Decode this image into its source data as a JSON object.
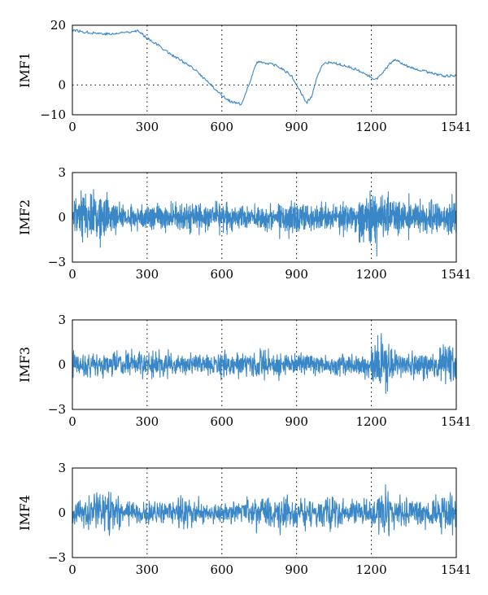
{
  "chart_data": [
    {
      "type": "line",
      "ylabel": "IMF1",
      "xlim": [
        0,
        1541
      ],
      "ylim": [
        -10,
        20
      ],
      "x_ticks": [
        0,
        300,
        600,
        900,
        1200,
        1541
      ],
      "y_ticks": [
        -10,
        0,
        20
      ],
      "y_tick_labels": [
        "−10",
        "0",
        "20"
      ],
      "grid": "vertical dotted at 300, 600, 900, 1200",
      "zero_line": true,
      "series": [
        {
          "color": "#3a87c8",
          "x": [
            0,
            40,
            80,
            120,
            160,
            200,
            240,
            260,
            300,
            350,
            400,
            450,
            500,
            550,
            600,
            640,
            680,
            700,
            720,
            740,
            760,
            780,
            800,
            840,
            880,
            900,
            920,
            940,
            960,
            980,
            1000,
            1020,
            1060,
            1100,
            1140,
            1180,
            1200,
            1220,
            1240,
            1260,
            1280,
            1300,
            1320,
            1340,
            1380,
            1420,
            1460,
            1500,
            1541
          ],
          "values": [
            18.5,
            17.8,
            17.5,
            17.2,
            17.0,
            17.5,
            18.0,
            18.2,
            15.8,
            13.0,
            10.0,
            7.5,
            4.5,
            0.5,
            -3.5,
            -5.8,
            -6.5,
            -2.0,
            3.0,
            7.5,
            7.8,
            7.2,
            7.0,
            5.5,
            3.0,
            0.0,
            -3.0,
            -6.0,
            -4.0,
            2.0,
            6.0,
            7.5,
            7.0,
            6.5,
            5.0,
            3.5,
            2.5,
            2.0,
            3.5,
            5.5,
            7.5,
            8.5,
            7.5,
            6.5,
            5.0,
            4.5,
            3.5,
            3.0,
            3.2
          ]
        }
      ]
    },
    {
      "type": "line",
      "ylabel": "IMF2",
      "xlim": [
        0,
        1541
      ],
      "ylim": [
        -3,
        3
      ],
      "x_ticks": [
        0,
        300,
        600,
        900,
        1200,
        1541
      ],
      "y_ticks": [
        -3,
        0,
        3
      ],
      "y_tick_labels": [
        "−3",
        "0",
        "3"
      ],
      "grid": "vertical dotted at 300, 600, 900, 1200",
      "zero_line": false,
      "series": [
        {
          "color": "#3a87c8",
          "signal": "noise",
          "count": 1541,
          "amplitude_envelope": {
            "x": [
              0,
              50,
              100,
              150,
              200,
              250,
              300,
              400,
              500,
              600,
              700,
              800,
              900,
              1000,
              1100,
              1200,
              1250,
              1300,
              1400,
              1500,
              1541
            ],
            "values": [
              0.8,
              1.5,
              1.2,
              0.9,
              0.7,
              0.6,
              0.7,
              0.7,
              0.8,
              0.7,
              0.6,
              0.7,
              0.9,
              0.7,
              0.7,
              1.3,
              1.6,
              0.9,
              0.8,
              0.8,
              0.9
            ]
          }
        }
      ]
    },
    {
      "type": "line",
      "ylabel": "IMF3",
      "xlim": [
        0,
        1541
      ],
      "ylim": [
        -3,
        3
      ],
      "x_ticks": [
        0,
        300,
        600,
        900,
        1200,
        1541
      ],
      "y_ticks": [
        -3,
        0,
        3
      ],
      "y_tick_labels": [
        "−3",
        "0",
        "3"
      ],
      "grid": "vertical dotted at 300, 600, 900, 1200",
      "zero_line": false,
      "series": [
        {
          "color": "#3a87c8",
          "signal": "noise",
          "count": 1541,
          "amplitude_envelope": {
            "x": [
              0,
              50,
              100,
              150,
              200,
              250,
              300,
              350,
              400,
              500,
              600,
              700,
              750,
              800,
              900,
              1000,
              1100,
              1200,
              1230,
              1260,
              1300,
              1400,
              1480,
              1520,
              1541
            ],
            "values": [
              0.7,
              0.8,
              0.7,
              0.8,
              0.9,
              0.7,
              0.8,
              1.0,
              0.7,
              0.6,
              0.8,
              0.7,
              1.0,
              0.8,
              0.7,
              0.6,
              0.7,
              1.0,
              2.0,
              1.4,
              0.8,
              0.8,
              1.0,
              1.3,
              1.1
            ]
          }
        }
      ]
    },
    {
      "type": "line",
      "ylabel": "IMF4",
      "xlim": [
        0,
        1541
      ],
      "ylim": [
        -3,
        3
      ],
      "x_ticks": [
        0,
        300,
        600,
        900,
        1200,
        1541
      ],
      "y_ticks": [
        -3,
        0,
        3
      ],
      "y_tick_labels": [
        "−3",
        "0",
        "3"
      ],
      "grid": "vertical dotted at 300, 600, 900, 1200",
      "zero_line": false,
      "series": [
        {
          "color": "#3a87c8",
          "signal": "noise",
          "count": 1541,
          "amplitude_envelope": {
            "x": [
              0,
              50,
              100,
              150,
              200,
              250,
              300,
              400,
              450,
              500,
              600,
              700,
              800,
              850,
              900,
              1000,
              1050,
              1100,
              1200,
              1250,
              1300,
              1400,
              1450,
              1500,
              1541
            ],
            "values": [
              0.6,
              0.9,
              1.1,
              1.3,
              0.8,
              0.6,
              0.7,
              0.7,
              1.0,
              0.7,
              0.6,
              0.8,
              0.9,
              1.1,
              0.8,
              0.9,
              1.2,
              0.9,
              0.9,
              1.4,
              0.9,
              0.8,
              1.0,
              1.4,
              0.8
            ]
          }
        }
      ]
    }
  ]
}
